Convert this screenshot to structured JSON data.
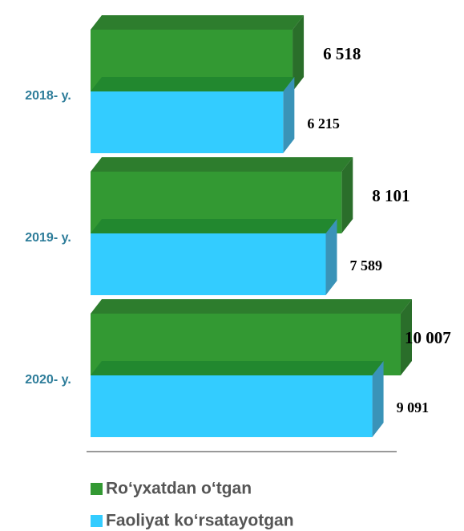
{
  "chart_data": {
    "type": "bar3d",
    "categories": [
      "2018- y.",
      "2019- y.",
      "2020- y."
    ],
    "series": [
      {
        "name": "Ro‘yxatdan o‘tgan",
        "color": "#339933",
        "values": [
          6518,
          8101,
          10007
        ],
        "value_labels": [
          "6 518",
          "8 101",
          "10 007"
        ]
      },
      {
        "name": "Faoliyat ko‘rsatayotgan",
        "color": "#33ccff",
        "values": [
          6215,
          7589,
          9091
        ],
        "value_labels": [
          "6 215",
          "7 589",
          "9 091"
        ]
      }
    ]
  }
}
